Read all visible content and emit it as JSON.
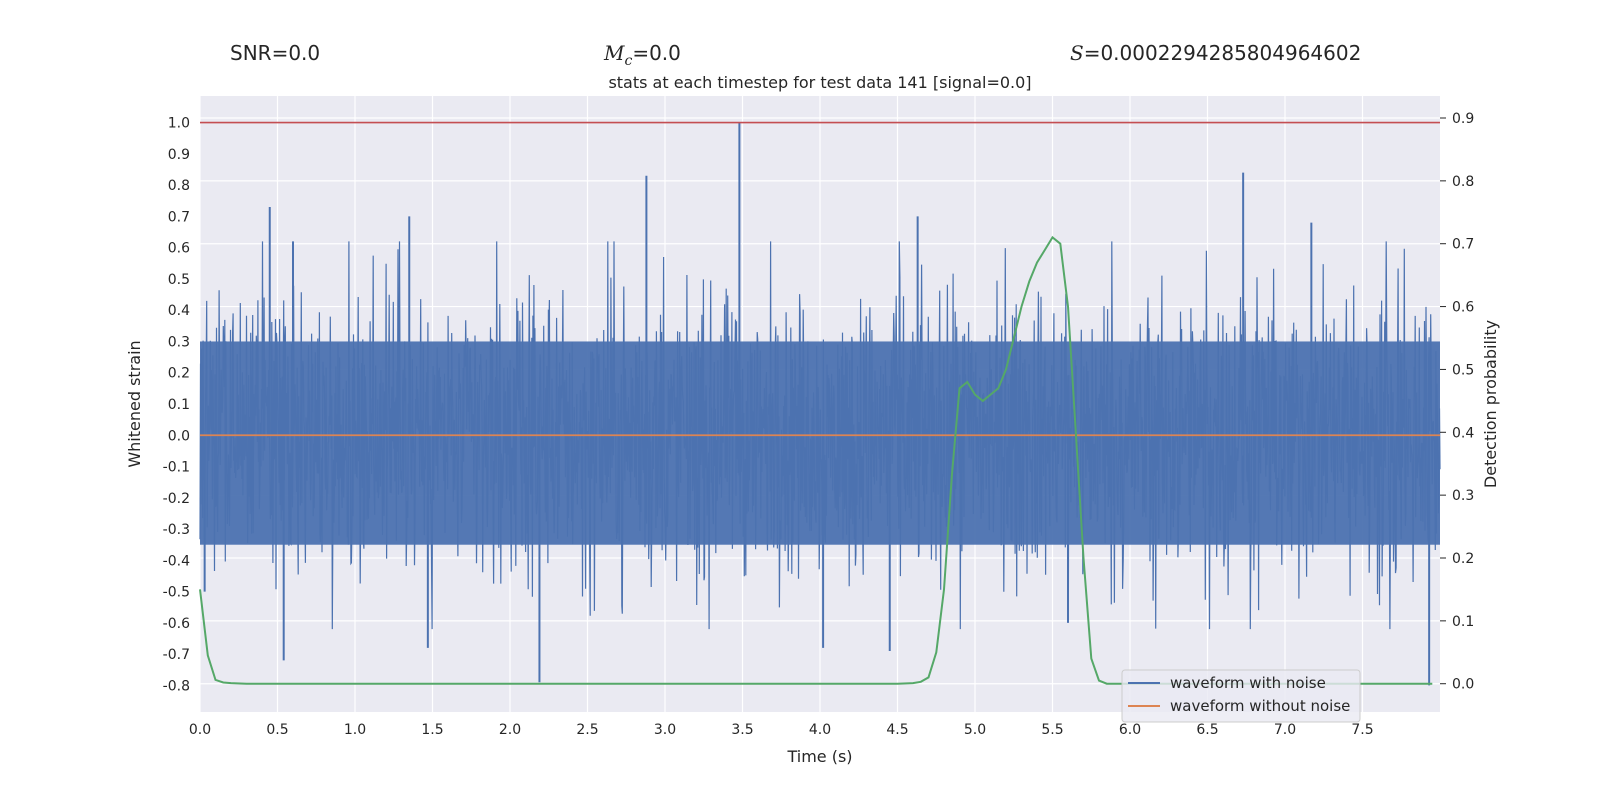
{
  "header": {
    "snr_label": "SNR",
    "snr_value": "=0.0",
    "mc_symbol": "M",
    "mc_sub": "c",
    "mc_value": "=0.0",
    "s_symbol": "S",
    "s_value": "=0.0002294285804964602"
  },
  "chart_data": {
    "type": "line",
    "title": "stats at each timestep for test data 141 [signal=0.0]",
    "xlabel": "Time (s)",
    "ylabel": "Whitened strain",
    "ylabel_right": "Detection probability",
    "xlim": [
      0.0,
      8.0
    ],
    "ylim": [
      -0.885,
      1.085
    ],
    "ylim_right": [
      -0.045,
      0.935
    ],
    "x_ticks": [
      "0.0",
      "0.5",
      "1.0",
      "1.5",
      "2.0",
      "2.5",
      "3.0",
      "3.5",
      "4.0",
      "4.5",
      "5.0",
      "5.5",
      "6.0",
      "6.5",
      "7.0",
      "7.5"
    ],
    "y_ticks": [
      "1.0",
      "0.9",
      "0.8",
      "0.7",
      "0.6",
      "0.5",
      "0.4",
      "0.3",
      "0.2",
      "0.1",
      "0.0",
      "-0.1",
      "-0.2",
      "-0.3",
      "-0.4",
      "-0.5",
      "-0.6",
      "-0.7",
      "-0.8"
    ],
    "y_ticks_right": [
      "0.9",
      "0.8",
      "0.7",
      "0.6",
      "0.5",
      "0.4",
      "0.3",
      "0.2",
      "0.1",
      "0.0"
    ],
    "threshold": {
      "value": 1.0,
      "color": "#c44e52"
    },
    "legend_placement": "bottom-right",
    "grid": true,
    "series": [
      {
        "name": "waveform with noise",
        "color": "#4c72b0",
        "kind": "dense-noise",
        "typical_envelope": [
          -0.35,
          0.3
        ],
        "peaks": [
          {
            "x": 0.03,
            "y": -0.5
          },
          {
            "x": 0.45,
            "y": 0.73
          },
          {
            "x": 0.54,
            "y": -0.72
          },
          {
            "x": 0.6,
            "y": 0.62
          },
          {
            "x": 1.35,
            "y": 0.7
          },
          {
            "x": 1.47,
            "y": -0.68
          },
          {
            "x": 2.19,
            "y": -0.79
          },
          {
            "x": 2.88,
            "y": 0.83
          },
          {
            "x": 3.48,
            "y": 1.0
          },
          {
            "x": 4.02,
            "y": -0.68
          },
          {
            "x": 4.45,
            "y": -0.69
          },
          {
            "x": 4.63,
            "y": 0.7
          },
          {
            "x": 5.6,
            "y": -0.6
          },
          {
            "x": 6.73,
            "y": 0.84
          },
          {
            "x": 7.17,
            "y": 0.68
          },
          {
            "x": 7.93,
            "y": -0.8
          }
        ]
      },
      {
        "name": "waveform without noise",
        "color": "#dd8452",
        "x": [
          0.0,
          8.0
        ],
        "y": [
          0.0,
          0.0
        ]
      },
      {
        "name": "",
        "axis": "right",
        "color": "#55a868",
        "x": [
          0.0,
          0.05,
          0.1,
          0.15,
          0.2,
          0.3,
          0.5,
          1.0,
          2.0,
          3.0,
          4.0,
          4.5,
          4.6,
          4.65,
          4.7,
          4.75,
          4.8,
          4.85,
          4.9,
          4.95,
          5.0,
          5.05,
          5.1,
          5.15,
          5.2,
          5.25,
          5.3,
          5.35,
          5.4,
          5.45,
          5.5,
          5.55,
          5.6,
          5.65,
          5.7,
          5.75,
          5.8,
          5.85,
          5.9,
          6.0,
          7.0,
          7.95
        ],
        "y": [
          0.15,
          0.045,
          0.006,
          0.002,
          0.001,
          0.0,
          0.0,
          0.0,
          0.0,
          0.0,
          0.0,
          0.0,
          0.001,
          0.003,
          0.01,
          0.05,
          0.15,
          0.33,
          0.47,
          0.48,
          0.46,
          0.45,
          0.46,
          0.47,
          0.5,
          0.55,
          0.6,
          0.64,
          0.67,
          0.69,
          0.71,
          0.7,
          0.6,
          0.4,
          0.2,
          0.04,
          0.005,
          0.0,
          0.0,
          0.0,
          0.0,
          0.0
        ]
      }
    ]
  }
}
